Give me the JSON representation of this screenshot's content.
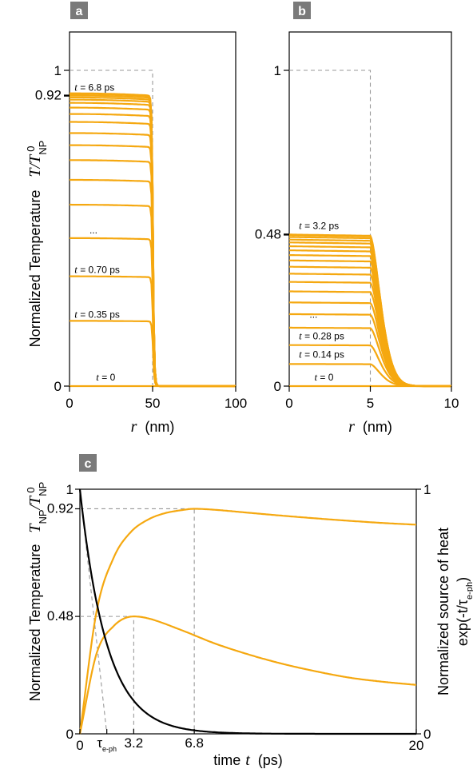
{
  "colors": {
    "curve": "#f5a810",
    "source": "#000000",
    "guide": "#999999",
    "panel_tag_bg": "#7a7a7a"
  },
  "shared": {
    "ylabel_text": "Normalized Temperature",
    "ylabel_symbol_ab": "T/T",
    "ylabel_symbol_c": "T",
    "symbol_sub_np": "NP",
    "symbol_sup_0": "0",
    "xlabel_r": "r",
    "xlabel_r_unit": "(nm)"
  },
  "chart_data": [
    {
      "panel": "a",
      "type": "line",
      "xlabel": "r (nm)",
      "ylabel": "Normalized Temperature T/T_NP^0",
      "xlim": [
        0,
        100
      ],
      "ylim": [
        0,
        1
      ],
      "xticks": [
        "0",
        "50",
        "100"
      ],
      "yticks": [
        {
          "value": 0,
          "label": "0"
        },
        {
          "value": 0.92,
          "label": "0.92"
        },
        {
          "value": 1,
          "label": "1"
        }
      ],
      "radius": 50,
      "interface_width": 1.5,
      "levels": [
        0.0,
        0.205,
        0.345,
        0.465,
        0.57,
        0.648,
        0.71,
        0.757,
        0.795,
        0.83,
        0.855,
        0.875,
        0.89,
        0.9,
        0.907,
        0.913,
        0.918,
        0.92
      ],
      "center_bump": 0.008,
      "annotations": [
        {
          "text": "t = 6.8 ps",
          "t": "t",
          "rest": " = 6.8 ps",
          "x": 3,
          "y": 0.935
        },
        {
          "text": "...",
          "t": "",
          "rest": "...",
          "x": 12,
          "y": 0.483
        },
        {
          "text": "t = 0.70 ps",
          "t": "t",
          "rest": " = 0.70 ps",
          "x": 3,
          "y": 0.358
        },
        {
          "text": "t = 0.35 ps",
          "t": "t",
          "rest": " = 0.35 ps",
          "x": 3,
          "y": 0.216
        },
        {
          "text": "t = 0",
          "t": "t",
          "rest": " = 0",
          "x": 16,
          "y": 0.018
        }
      ],
      "box_guide": {
        "y": 1,
        "x": 50
      }
    },
    {
      "panel": "b",
      "type": "line",
      "xlabel": "r (nm)",
      "ylabel": "Normalized Temperature T/T_NP^0",
      "xlim": [
        0,
        10
      ],
      "ylim": [
        0,
        1
      ],
      "xticks": [
        "0",
        "5",
        "10"
      ],
      "yticks": [
        {
          "value": 0,
          "label": "0"
        },
        {
          "value": 0.48,
          "label": "0.48"
        },
        {
          "value": 1,
          "label": "1"
        }
      ],
      "radius": 5,
      "decay_length": 0.9,
      "levels": [
        0.0,
        0.07,
        0.13,
        0.185,
        0.228,
        0.265,
        0.3,
        0.33,
        0.356,
        0.378,
        0.398,
        0.415,
        0.43,
        0.443,
        0.455,
        0.464,
        0.472,
        0.478,
        0.48
      ],
      "annotations": [
        {
          "text": "t = 3.2 ps",
          "t": "t",
          "rest": " = 3.2 ps",
          "x": 0.6,
          "y": 0.497
        },
        {
          "text": "...",
          "t": "",
          "rest": "...",
          "x": 1.25,
          "y": 0.217
        },
        {
          "text": "t = 0.28 ps",
          "t": "t",
          "rest": " = 0.28 ps",
          "x": 0.6,
          "y": 0.148
        },
        {
          "text": "t = 0.14 ps",
          "t": "t",
          "rest": " = 0.14 ps",
          "x": 0.6,
          "y": 0.09
        },
        {
          "text": "t = 0",
          "t": "t",
          "rest": " = 0",
          "x": 1.55,
          "y": 0.018
        }
      ],
      "box_guide": {
        "y": 1,
        "x": 5
      }
    },
    {
      "panel": "c",
      "type": "line",
      "xlabel": "time t (ps)",
      "xlabel_pre": "time",
      "xlabel_var": "t",
      "xlabel_unit": "(ps)",
      "ylabel": "Normalized Temperature T_NP/T_NP^0",
      "ylabel_right": "Normalized source of heat exp(-t/τe-ph)",
      "ylabel_right_text": "Normalized source of heat",
      "ylabel_right_expr": "exp(-t/τ",
      "ylabel_right_sub": "e-ph",
      "ylabel_right_close": ")",
      "xlim": [
        0,
        20
      ],
      "ylim": [
        0,
        1
      ],
      "xticks": [
        {
          "value": 0,
          "label": "0"
        },
        {
          "value": 1.6,
          "label": "τ",
          "sub": "e-ph"
        },
        {
          "value": 3.2,
          "label": "3.2"
        },
        {
          "value": 6.8,
          "label": "6.8"
        },
        {
          "value": 20,
          "label": "20"
        }
      ],
      "yticks": [
        {
          "value": 0,
          "label": "0"
        },
        {
          "value": 0.48,
          "label": "0.48"
        },
        {
          "value": 0.92,
          "label": "0.92"
        },
        {
          "value": 1,
          "label": "1"
        }
      ],
      "yticks_right": [
        "0",
        "1"
      ],
      "tau": 1.6,
      "series": [
        {
          "role": "np100",
          "peak_time": 6.8,
          "peak_value": 0.92,
          "value_at_20": 0.855,
          "values": [
            [
              0,
              0
            ],
            [
              1,
              0.503
            ],
            [
              2,
              0.719
            ],
            [
              3,
              0.823
            ],
            [
              4,
              0.874
            ],
            [
              5,
              0.901
            ],
            [
              6,
              0.914
            ],
            [
              6.8,
              0.92
            ],
            [
              8,
              0.916
            ],
            [
              10,
              0.904
            ],
            [
              12,
              0.892
            ],
            [
              14,
              0.881
            ],
            [
              16,
              0.871
            ],
            [
              18,
              0.862
            ],
            [
              20,
              0.855
            ]
          ]
        },
        {
          "role": "np10",
          "peak_time": 3.2,
          "peak_value": 0.48,
          "value_at_20": 0.2,
          "values": [
            [
              0,
              0
            ],
            [
              1,
              0.33
            ],
            [
              2,
              0.44
            ],
            [
              3.2,
              0.48
            ],
            [
              4,
              0.473
            ],
            [
              6,
              0.425
            ],
            [
              8,
              0.37
            ],
            [
              10,
              0.325
            ],
            [
              12,
              0.287
            ],
            [
              14,
              0.256
            ],
            [
              16,
              0.23
            ],
            [
              18,
              0.213
            ],
            [
              20,
              0.2
            ]
          ]
        },
        {
          "role": "source",
          "function": "exp(-t/1.6)"
        }
      ],
      "tangent": {
        "from": [
          0,
          1
        ],
        "to": [
          1.6,
          0
        ]
      }
    }
  ]
}
